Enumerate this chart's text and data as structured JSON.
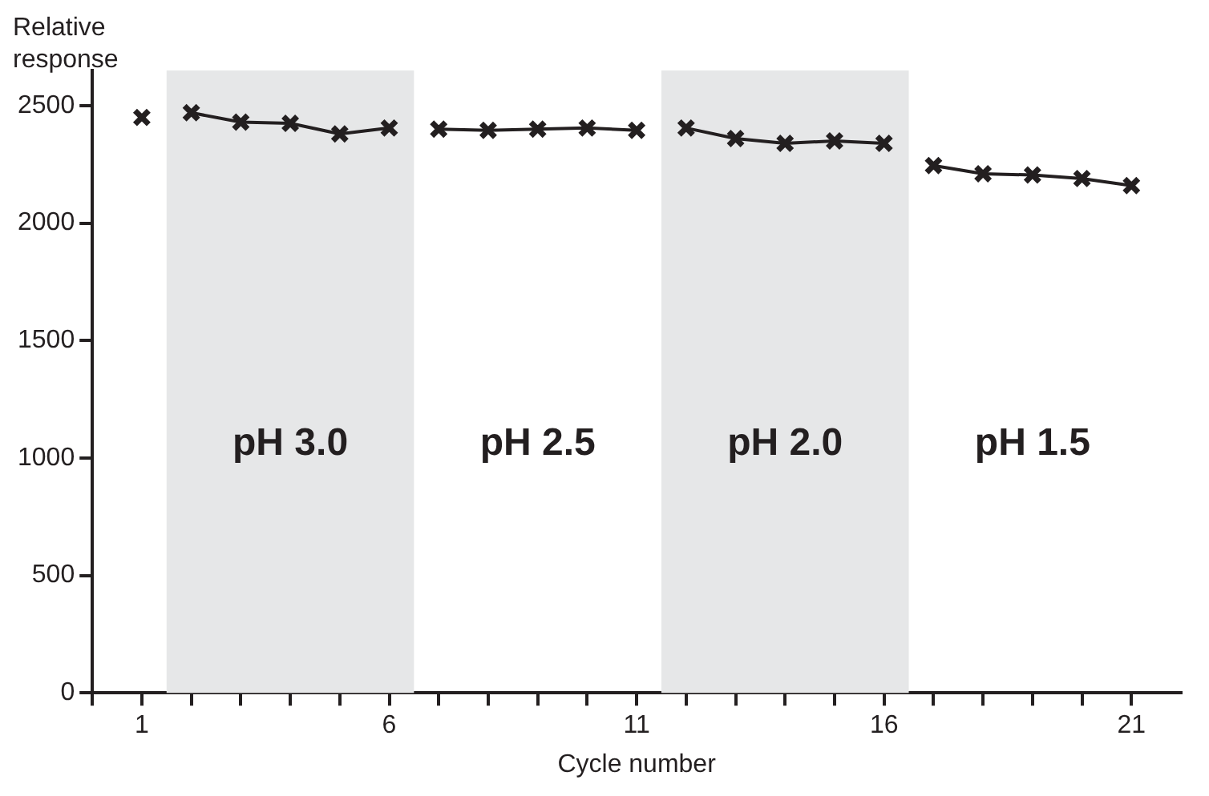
{
  "chart_data": {
    "type": "line",
    "xlabel": "Cycle number",
    "ylabel": "Relative response",
    "xlim": [
      0,
      22
    ],
    "ylim": [
      0,
      2650
    ],
    "xticks": [
      {
        "value": 0,
        "label": null
      },
      1,
      {
        "value": 2,
        "label": null
      },
      {
        "value": 3,
        "label": null
      },
      {
        "value": 4,
        "label": null
      },
      {
        "value": 5,
        "label": null
      },
      6,
      {
        "value": 7,
        "label": null
      },
      {
        "value": 8,
        "label": null
      },
      {
        "value": 9,
        "label": null
      },
      {
        "value": 10,
        "label": null
      },
      11,
      {
        "value": 12,
        "label": null
      },
      {
        "value": 13,
        "label": null
      },
      {
        "value": 14,
        "label": null
      },
      {
        "value": 15,
        "label": null
      },
      16,
      {
        "value": 17,
        "label": null
      },
      {
        "value": 18,
        "label": null
      },
      {
        "value": 19,
        "label": null
      },
      {
        "value": 20,
        "label": null
      },
      21
    ],
    "yticks": [
      0,
      500,
      1000,
      1500,
      2000,
      2500
    ],
    "series": [
      {
        "color": "#231f20",
        "x": [
          1
        ],
        "values": [
          2450
        ]
      },
      {
        "color": "#231f20",
        "x": [
          2,
          3,
          4,
          5,
          6
        ],
        "values": [
          2470,
          2430,
          2425,
          2380,
          2405
        ]
      },
      {
        "color": "#231f20",
        "x": [
          7,
          8,
          9,
          10,
          11
        ],
        "values": [
          2400,
          2395,
          2400,
          2405,
          2395
        ]
      },
      {
        "color": "#231f20",
        "x": [
          12,
          13,
          14,
          15,
          16
        ],
        "values": [
          2405,
          2360,
          2340,
          2350,
          2340
        ]
      },
      {
        "color": "#231f20",
        "x": [
          17,
          18,
          19,
          20,
          21
        ],
        "values": [
          2245,
          2210,
          2205,
          2190,
          2160
        ]
      }
    ],
    "bands": [
      {
        "axis": "x",
        "from": 1.5,
        "to": 6.5,
        "color": "#e6e7e8"
      },
      {
        "axis": "x",
        "from": 11.5,
        "to": 16.5,
        "color": "#e6e7e8"
      }
    ],
    "annotations": [
      "pH 3.0",
      "pH 2.5",
      "pH 2.0",
      "pH 1.5"
    ],
    "marker": "cross",
    "line_style": "solid",
    "grid": false,
    "legend": false
  }
}
